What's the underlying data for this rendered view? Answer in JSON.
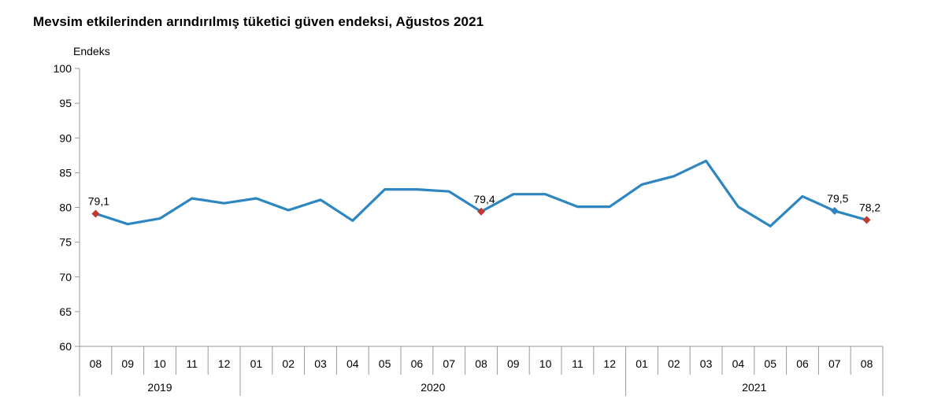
{
  "chart_data": {
    "type": "line",
    "title": "Mevsim etkilerinden arındırılmış tüketici güven endeksi, Ağustos 2021",
    "ylabel": "Endeks",
    "ylim": [
      60,
      100
    ],
    "yticks": [
      60,
      65,
      70,
      75,
      80,
      85,
      90,
      95,
      100
    ],
    "grid": false,
    "categories": [
      "08",
      "09",
      "10",
      "11",
      "12",
      "01",
      "02",
      "03",
      "04",
      "05",
      "06",
      "07",
      "08",
      "09",
      "10",
      "11",
      "12",
      "01",
      "02",
      "03",
      "04",
      "05",
      "06",
      "07",
      "08"
    ],
    "year_groups": [
      {
        "label": "2019",
        "start": 0,
        "end": 4
      },
      {
        "label": "2020",
        "start": 5,
        "end": 16
      },
      {
        "label": "2021",
        "start": 17,
        "end": 24
      }
    ],
    "series": [
      {
        "values": [
          79.1,
          77.6,
          78.4,
          81.3,
          80.6,
          81.3,
          79.6,
          81.1,
          78.1,
          82.6,
          82.6,
          82.3,
          79.4,
          81.9,
          81.9,
          80.1,
          80.1,
          83.3,
          84.5,
          86.7,
          80.1,
          77.3,
          81.6,
          79.5,
          78.2
        ],
        "color": "#2e86c1"
      }
    ],
    "annotations": [
      {
        "index": 0,
        "text": "79,1",
        "marker_color": "#c0392b"
      },
      {
        "index": 12,
        "text": "79,4",
        "marker_color": "#c0392b"
      },
      {
        "index": 23,
        "text": "79,5",
        "marker_color": "#2e86c1"
      },
      {
        "index": 24,
        "text": "78,2",
        "marker_color": "#c0392b"
      }
    ]
  }
}
